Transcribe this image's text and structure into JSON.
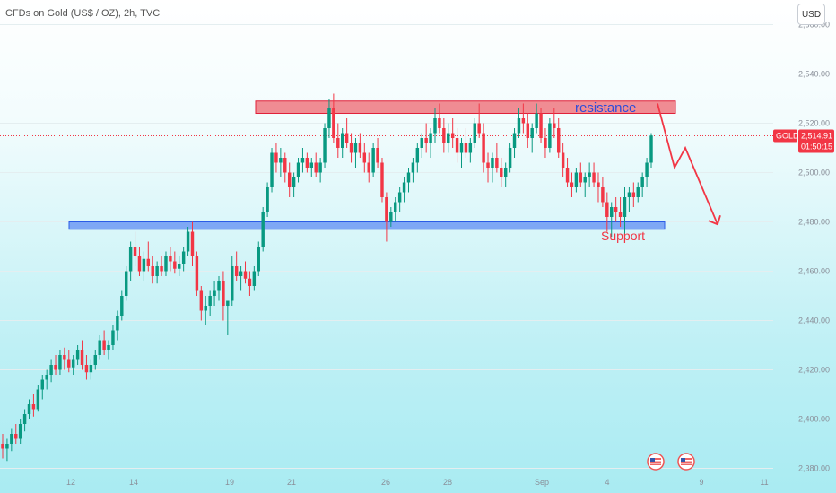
{
  "header": {
    "symbol_title": "CFDs on Gold (US$ / OZ), 2h, TVC",
    "currency_button": "USD"
  },
  "price_badge": {
    "ticker": "GOLD",
    "price": "2,514.91",
    "countdown": "01:50:15",
    "color": "#f23645"
  },
  "annotations": {
    "resistance_label": "resistance",
    "support_label": "Support"
  },
  "colors": {
    "up": "#089981",
    "down": "#f23645",
    "resistance_fill": "#f08c93",
    "resistance_border": "#e0213a",
    "support_fill": "#7ea8f5",
    "support_border": "#2b5ce6",
    "resistance_text": "#2f4bd8",
    "support_text": "#f23645",
    "arrow": "#f23645"
  },
  "chart_data": {
    "type": "candlestick",
    "title": "CFDs on Gold (US$ / OZ), 2h, TVC",
    "y_ticks": [
      2380,
      2400,
      2420,
      2440,
      2460,
      2480,
      2500,
      2520,
      2540,
      2560
    ],
    "y_tick_labels": [
      "2,380.00",
      "2,400.00",
      "2,420.00",
      "2,440.00",
      "2,460.00",
      "2,480.00",
      "2,500.00",
      "2,520.00",
      "2,540.00",
      "2,560.00"
    ],
    "ylim": [
      2378,
      2570
    ],
    "x_tick_labels": [
      "12",
      "14",
      "19",
      "21",
      "26",
      "28",
      "Sep",
      "4",
      "9",
      "11"
    ],
    "current_price": 2514.91,
    "resistance_zone": [
      2524,
      2529
    ],
    "support_zone": [
      2477,
      2480
    ],
    "projection": [
      2528,
      2502,
      2510,
      2479
    ],
    "ohlc": [
      [
        2390,
        2394,
        2384,
        2388
      ],
      [
        2388,
        2392,
        2383,
        2390
      ],
      [
        2390,
        2396,
        2387,
        2394
      ],
      [
        2394,
        2398,
        2390,
        2392
      ],
      [
        2392,
        2400,
        2390,
        2398
      ],
      [
        2398,
        2404,
        2395,
        2402
      ],
      [
        2402,
        2408,
        2400,
        2406
      ],
      [
        2406,
        2410,
        2401,
        2404
      ],
      [
        2404,
        2414,
        2403,
        2412
      ],
      [
        2412,
        2418,
        2408,
        2416
      ],
      [
        2416,
        2420,
        2412,
        2418
      ],
      [
        2418,
        2424,
        2415,
        2422
      ],
      [
        2422,
        2426,
        2418,
        2420
      ],
      [
        2420,
        2428,
        2418,
        2426
      ],
      [
        2426,
        2429,
        2420,
        2424
      ],
      [
        2424,
        2428,
        2419,
        2421
      ],
      [
        2421,
        2426,
        2418,
        2424
      ],
      [
        2424,
        2430,
        2422,
        2428
      ],
      [
        2428,
        2432,
        2420,
        2422
      ],
      [
        2422,
        2426,
        2416,
        2419
      ],
      [
        2419,
        2424,
        2416,
        2422
      ],
      [
        2422,
        2428,
        2420,
        2426
      ],
      [
        2426,
        2434,
        2424,
        2432
      ],
      [
        2432,
        2436,
        2426,
        2428
      ],
      [
        2428,
        2432,
        2424,
        2430
      ],
      [
        2430,
        2438,
        2428,
        2436
      ],
      [
        2436,
        2444,
        2432,
        2442
      ],
      [
        2442,
        2452,
        2440,
        2450
      ],
      [
        2450,
        2462,
        2448,
        2460
      ],
      [
        2460,
        2472,
        2456,
        2470
      ],
      [
        2470,
        2476,
        2462,
        2466
      ],
      [
        2466,
        2470,
        2458,
        2460
      ],
      [
        2460,
        2468,
        2456,
        2465
      ],
      [
        2465,
        2472,
        2460,
        2462
      ],
      [
        2462,
        2466,
        2455,
        2458
      ],
      [
        2458,
        2464,
        2455,
        2462
      ],
      [
        2462,
        2466,
        2458,
        2460
      ],
      [
        2460,
        2468,
        2458,
        2466
      ],
      [
        2466,
        2470,
        2460,
        2464
      ],
      [
        2464,
        2468,
        2459,
        2461
      ],
      [
        2461,
        2466,
        2458,
        2463
      ],
      [
        2463,
        2470,
        2460,
        2468
      ],
      [
        2468,
        2478,
        2466,
        2476
      ],
      [
        2476,
        2480,
        2462,
        2466
      ],
      [
        2466,
        2468,
        2450,
        2452
      ],
      [
        2452,
        2454,
        2440,
        2444
      ],
      [
        2444,
        2450,
        2438,
        2446
      ],
      [
        2446,
        2452,
        2442,
        2450
      ],
      [
        2450,
        2456,
        2446,
        2452
      ],
      [
        2452,
        2458,
        2448,
        2456
      ],
      [
        2456,
        2460,
        2440,
        2446
      ],
      [
        2446,
        2448,
        2434,
        2448
      ],
      [
        2448,
        2466,
        2446,
        2462
      ],
      [
        2462,
        2468,
        2456,
        2458
      ],
      [
        2458,
        2462,
        2452,
        2460
      ],
      [
        2460,
        2464,
        2455,
        2457
      ],
      [
        2457,
        2460,
        2450,
        2454
      ],
      [
        2454,
        2462,
        2452,
        2460
      ],
      [
        2460,
        2472,
        2458,
        2470
      ],
      [
        2470,
        2486,
        2468,
        2484
      ],
      [
        2484,
        2496,
        2482,
        2494
      ],
      [
        2494,
        2510,
        2492,
        2508
      ],
      [
        2508,
        2512,
        2500,
        2504
      ],
      [
        2504,
        2510,
        2498,
        2506
      ],
      [
        2506,
        2508,
        2496,
        2500
      ],
      [
        2500,
        2504,
        2490,
        2494
      ],
      [
        2494,
        2500,
        2490,
        2498
      ],
      [
        2498,
        2506,
        2496,
        2504
      ],
      [
        2504,
        2510,
        2500,
        2506
      ],
      [
        2506,
        2508,
        2500,
        2502
      ],
      [
        2502,
        2506,
        2498,
        2504
      ],
      [
        2504,
        2508,
        2498,
        2500
      ],
      [
        2500,
        2506,
        2496,
        2504
      ],
      [
        2504,
        2520,
        2502,
        2518
      ],
      [
        2518,
        2530,
        2514,
        2526
      ],
      [
        2526,
        2532,
        2512,
        2514
      ],
      [
        2514,
        2520,
        2506,
        2510
      ],
      [
        2510,
        2518,
        2506,
        2516
      ],
      [
        2516,
        2522,
        2510,
        2512
      ],
      [
        2512,
        2516,
        2504,
        2508
      ],
      [
        2508,
        2514,
        2502,
        2512
      ],
      [
        2512,
        2516,
        2506,
        2508
      ],
      [
        2508,
        2512,
        2500,
        2504
      ],
      [
        2504,
        2508,
        2496,
        2500
      ],
      [
        2500,
        2512,
        2498,
        2510
      ],
      [
        2510,
        2514,
        2502,
        2504
      ],
      [
        2504,
        2506,
        2488,
        2490
      ],
      [
        2490,
        2492,
        2472,
        2480
      ],
      [
        2480,
        2486,
        2478,
        2484
      ],
      [
        2484,
        2490,
        2480,
        2488
      ],
      [
        2488,
        2494,
        2484,
        2492
      ],
      [
        2492,
        2498,
        2488,
        2496
      ],
      [
        2496,
        2502,
        2492,
        2500
      ],
      [
        2500,
        2506,
        2496,
        2504
      ],
      [
        2504,
        2512,
        2500,
        2510
      ],
      [
        2510,
        2516,
        2506,
        2514
      ],
      [
        2514,
        2520,
        2508,
        2512
      ],
      [
        2512,
        2518,
        2506,
        2516
      ],
      [
        2516,
        2526,
        2512,
        2522
      ],
      [
        2522,
        2528,
        2516,
        2518
      ],
      [
        2518,
        2522,
        2508,
        2512
      ],
      [
        2512,
        2520,
        2508,
        2516
      ],
      [
        2516,
        2522,
        2510,
        2514
      ],
      [
        2514,
        2518,
        2504,
        2508
      ],
      [
        2508,
        2514,
        2502,
        2512
      ],
      [
        2512,
        2518,
        2506,
        2508
      ],
      [
        2508,
        2514,
        2504,
        2512
      ],
      [
        2512,
        2522,
        2510,
        2520
      ],
      [
        2520,
        2528,
        2514,
        2516
      ],
      [
        2516,
        2520,
        2500,
        2504
      ],
      [
        2504,
        2508,
        2496,
        2502
      ],
      [
        2502,
        2508,
        2496,
        2506
      ],
      [
        2506,
        2512,
        2500,
        2502
      ],
      [
        2502,
        2506,
        2494,
        2498
      ],
      [
        2498,
        2504,
        2494,
        2502
      ],
      [
        2502,
        2512,
        2500,
        2510
      ],
      [
        2510,
        2518,
        2506,
        2516
      ],
      [
        2516,
        2526,
        2514,
        2522
      ],
      [
        2522,
        2528,
        2516,
        2520
      ],
      [
        2520,
        2524,
        2510,
        2514
      ],
      [
        2514,
        2520,
        2508,
        2518
      ],
      [
        2518,
        2528,
        2516,
        2524
      ],
      [
        2524,
        2526,
        2512,
        2514
      ],
      [
        2514,
        2518,
        2506,
        2510
      ],
      [
        2510,
        2522,
        2508,
        2520
      ],
      [
        2520,
        2526,
        2514,
        2518
      ],
      [
        2518,
        2522,
        2506,
        2508
      ],
      [
        2508,
        2512,
        2498,
        2502
      ],
      [
        2502,
        2506,
        2494,
        2496
      ],
      [
        2496,
        2500,
        2490,
        2494
      ],
      [
        2494,
        2502,
        2492,
        2500
      ],
      [
        2500,
        2504,
        2494,
        2496
      ],
      [
        2496,
        2500,
        2490,
        2498
      ],
      [
        2498,
        2504,
        2494,
        2500
      ],
      [
        2500,
        2504,
        2494,
        2496
      ],
      [
        2496,
        2500,
        2488,
        2494
      ],
      [
        2494,
        2498,
        2486,
        2488
      ],
      [
        2488,
        2492,
        2476,
        2482
      ],
      [
        2482,
        2488,
        2474,
        2486
      ],
      [
        2486,
        2490,
        2480,
        2484
      ],
      [
        2484,
        2490,
        2478,
        2482
      ],
      [
        2482,
        2494,
        2472,
        2490
      ],
      [
        2490,
        2494,
        2484,
        2492
      ],
      [
        2492,
        2496,
        2486,
        2490
      ],
      [
        2490,
        2496,
        2488,
        2494
      ],
      [
        2494,
        2500,
        2490,
        2498
      ],
      [
        2498,
        2506,
        2494,
        2504
      ],
      [
        2504,
        2516,
        2502,
        2515
      ]
    ]
  }
}
